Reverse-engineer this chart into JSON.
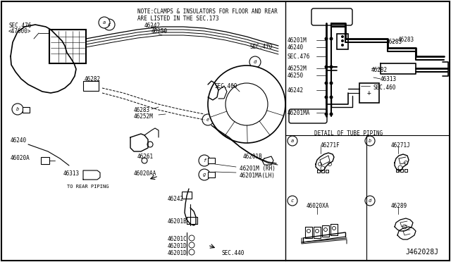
{
  "bg_color": "#ffffff",
  "diagram_id": "J462028J",
  "note_line1": "NOTE:CLAMPS & INSULATORS FOR FLOOR AND REAR",
  "note_line2": "ARE LISTED IN THE SEC.173",
  "detail_title": "DETAIL OF TUBE PIPING"
}
